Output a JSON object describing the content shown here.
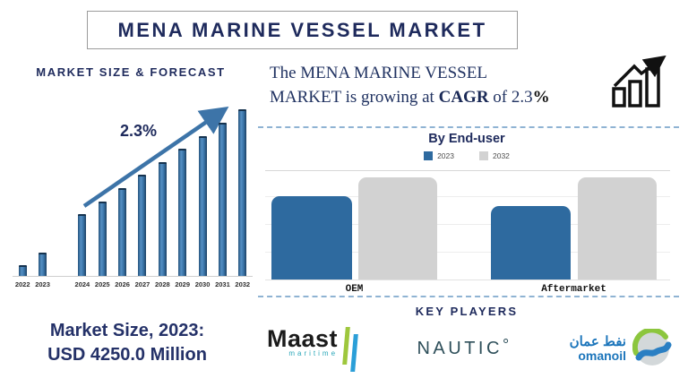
{
  "title": "MENA MARINE VESSEL MARKET",
  "chart_data": [
    {
      "type": "bar",
      "title": "MARKET SIZE & FORECAST",
      "categories": [
        "2022",
        "2023",
        "2024",
        "2025",
        "2026",
        "2027",
        "2028",
        "2029",
        "2030",
        "2031",
        "2032"
      ],
      "values": [
        7,
        14.4,
        37.4,
        44.9,
        52.9,
        61,
        68.4,
        76.5,
        84,
        92,
        100
      ],
      "ylim": [
        0,
        100
      ],
      "annotation": "2.3%",
      "bar_color": "#3a74a8",
      "grid": false,
      "legend_position": "none",
      "note": "bar heights are relative (no value axis shown); 2023 anchor value USD 4250.0 Million"
    },
    {
      "type": "bar",
      "title": "By End-user",
      "categories": [
        "OEM",
        "Aftermarket"
      ],
      "series": [
        {
          "name": "2023",
          "color": "#2e6a9f",
          "values": [
            82,
            72
          ]
        },
        {
          "name": "2032",
          "color": "#d2d2d2",
          "values": [
            100,
            100
          ]
        }
      ],
      "ylim": [
        0,
        100
      ],
      "grid": true,
      "legend_position": "top",
      "note": "bar heights are relative (no value axis shown)"
    }
  ],
  "growth_statement": {
    "line1": "The MENA MARINE VESSEL",
    "line2_prefix": "MARKET is growing at ",
    "cagr_word": "CAGR",
    "middle": " of 2.3",
    "percent": "%"
  },
  "market_size": {
    "line1": "Market Size, 2023:",
    "line2": "USD 4250.0 Million"
  },
  "key_players": {
    "heading": "KEY PLAYERS",
    "players": [
      {
        "name": "Maast",
        "subtext": "maritime"
      },
      {
        "name": "NAUTIC",
        "degree_mark": "°"
      },
      {
        "name": "omanoil",
        "arabic": "نفط عمان"
      }
    ]
  },
  "icons": {
    "growth": "bar-chart-rising-arrow-icon",
    "trend": "upward-trend-arrow",
    "maast_mark": "double-stripe-mark",
    "omanoil_mark": "circle-wave-mark"
  },
  "colors": {
    "navy": "#1e2a5c",
    "steel_blue": "#3a74a8",
    "flat_blue": "#2e6a9f",
    "bar_gray": "#d2d2d2",
    "dash_blue": "#8fb3d3",
    "maritime_teal": "#2ba7b9",
    "nautic_teal": "#2e4f5a",
    "leaf_green": "#9ec73d",
    "sky_blue": "#2b9fd8",
    "oman_blue": "#1b75bb"
  }
}
